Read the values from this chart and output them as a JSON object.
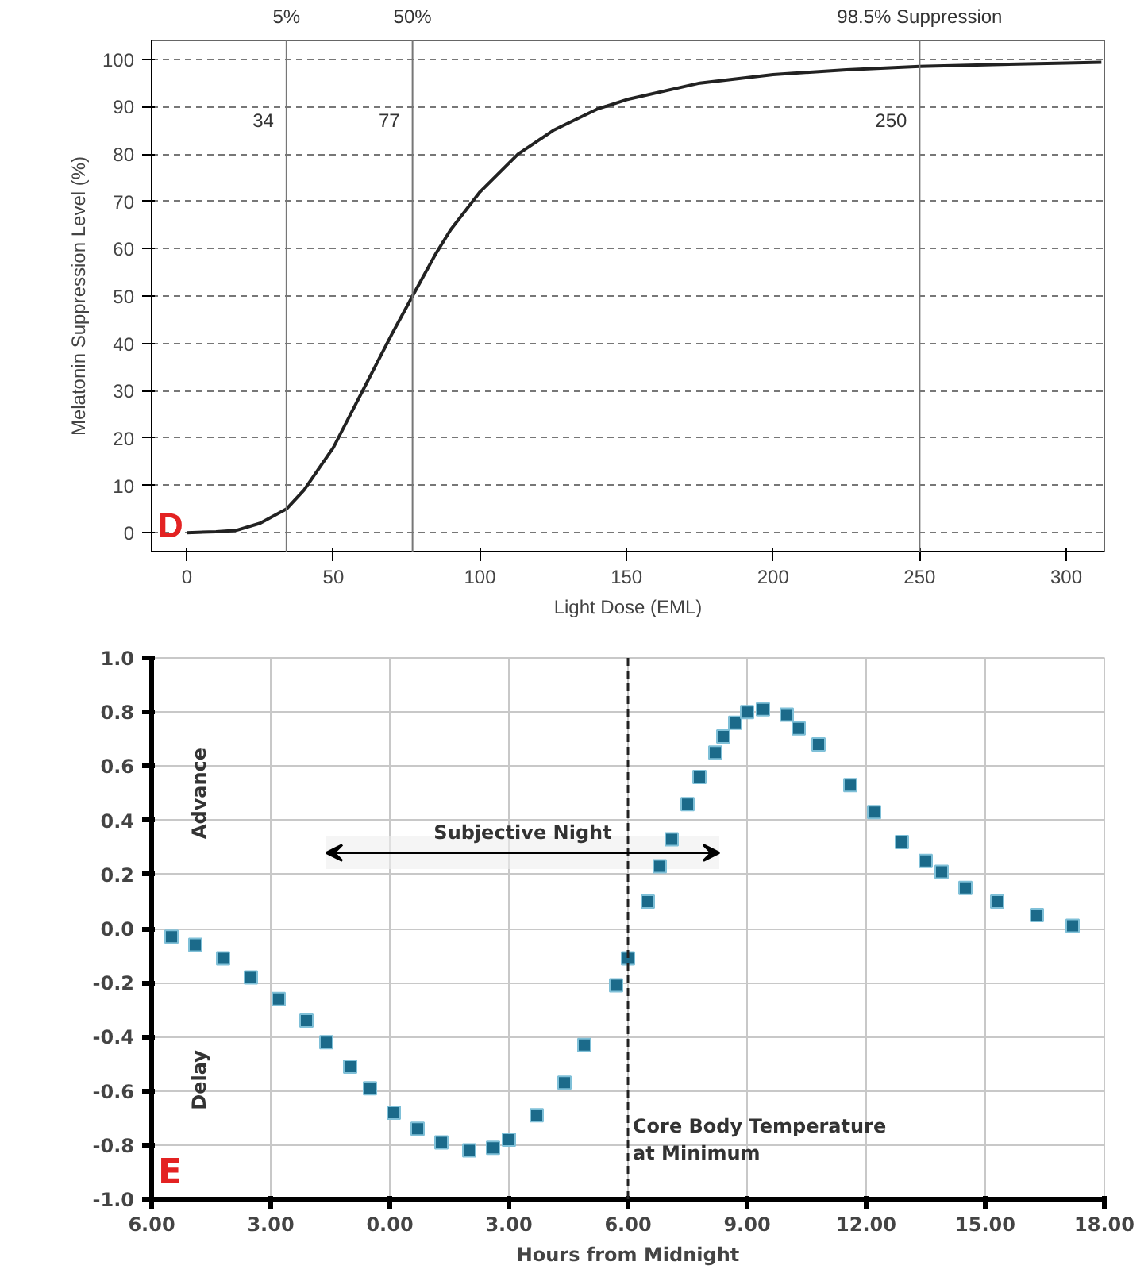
{
  "chart_data": [
    {
      "type": "line",
      "xlabel": "Light Dose (EML)",
      "ylabel": "Melatonin Suppression Level (%)",
      "x": [
        0,
        10,
        17,
        25,
        34,
        40,
        50,
        60,
        70,
        77,
        85,
        90,
        100,
        113,
        125,
        140,
        150,
        175,
        200,
        225,
        250,
        275,
        300,
        312
      ],
      "series": [
        {
          "color": "#222222",
          "values": [
            0,
            0.2,
            0.5,
            2,
            5,
            9,
            18,
            30,
            42,
            50,
            59,
            64,
            72,
            80,
            85,
            89.5,
            91.5,
            95,
            96.8,
            97.8,
            98.5,
            98.9,
            99.2,
            99.4
          ]
        }
      ],
      "xlim": [
        -12,
        313
      ],
      "ylim": [
        -4,
        104
      ],
      "xticks": [
        0,
        50,
        100,
        150,
        200,
        250,
        300
      ],
      "yticks": [
        0,
        10,
        20,
        30,
        40,
        50,
        60,
        70,
        80,
        90,
        100
      ],
      "grid": "y",
      "marker": "none",
      "line_style": "solid",
      "ref_lines": [
        {
          "axis": "x",
          "value": 34,
          "label": "34"
        },
        {
          "axis": "x",
          "value": 77,
          "label": "77"
        },
        {
          "axis": "x",
          "value": 250,
          "label": "250"
        }
      ],
      "annotations": [
        "5%",
        "50%",
        "98.5% Suppression",
        "D"
      ]
    },
    {
      "type": "scatter",
      "xlabel": "Hours from Midnight",
      "x": [
        -5.5,
        -4.9,
        -4.2,
        -3.5,
        -2.8,
        -2.1,
        -1.6,
        -1.0,
        -0.5,
        0.1,
        0.7,
        1.3,
        2.0,
        2.6,
        3.0,
        3.7,
        4.4,
        4.9,
        5.7,
        6.0,
        6.5,
        6.8,
        7.1,
        7.5,
        7.8,
        8.2,
        8.4,
        8.7,
        9.0,
        9.4,
        10.0,
        10.3,
        10.8,
        11.6,
        12.2,
        12.9,
        13.5,
        13.9,
        14.5,
        15.3,
        16.3,
        17.2
      ],
      "series": [
        {
          "color": "#1b6a8a",
          "values": [
            -0.03,
            -0.06,
            -0.11,
            -0.18,
            -0.26,
            -0.34,
            -0.42,
            -0.51,
            -0.59,
            -0.68,
            -0.74,
            -0.79,
            -0.82,
            -0.81,
            -0.78,
            -0.69,
            -0.57,
            -0.43,
            -0.21,
            -0.11,
            0.1,
            0.23,
            0.33,
            0.46,
            0.56,
            0.65,
            0.71,
            0.76,
            0.8,
            0.81,
            0.79,
            0.74,
            0.68,
            0.53,
            0.43,
            0.32,
            0.25,
            0.21,
            0.15,
            0.1,
            0.05,
            0.01
          ]
        }
      ],
      "xlim": [
        -6,
        18
      ],
      "ylim": [
        -1,
        1
      ],
      "xticks": [
        {
          "value": -6,
          "label": "6.00"
        },
        {
          "value": -3,
          "label": "3.00"
        },
        {
          "value": 0,
          "label": "0.00"
        },
        {
          "value": 3,
          "label": "3.00"
        },
        {
          "value": 6,
          "label": "6.00"
        },
        {
          "value": 9,
          "label": "9.00"
        },
        {
          "value": 12,
          "label": "12.00"
        },
        {
          "value": 15,
          "label": "15.00"
        },
        {
          "value": 18,
          "label": "18.00"
        }
      ],
      "yticks": [
        {
          "value": -1,
          "label": "-1.0"
        },
        {
          "value": -0.8,
          "label": "-0.8"
        },
        {
          "value": -0.6,
          "label": "-0.6"
        },
        {
          "value": -0.4,
          "label": "-0.4"
        },
        {
          "value": -0.2,
          "label": "-0.2"
        },
        {
          "value": 0,
          "label": "0.0"
        },
        {
          "value": 0.2,
          "label": "0.2"
        },
        {
          "value": 0.4,
          "label": "0.4"
        },
        {
          "value": 0.6,
          "label": "0.6"
        },
        {
          "value": 0.8,
          "label": "0.8"
        },
        {
          "value": 1,
          "label": "1.0"
        }
      ],
      "grid": true,
      "marker": "square",
      "ref_lines": [
        {
          "axis": "x",
          "value": 6,
          "label": "Core Body Temperature\nat Minimum",
          "line_style": "dashed"
        }
      ],
      "bands": [
        {
          "axis": "x",
          "from": -1.6,
          "to": 8.3,
          "label": "Subjective Night"
        }
      ],
      "annotations": [
        "Advance",
        "Delay",
        "E"
      ]
    }
  ]
}
